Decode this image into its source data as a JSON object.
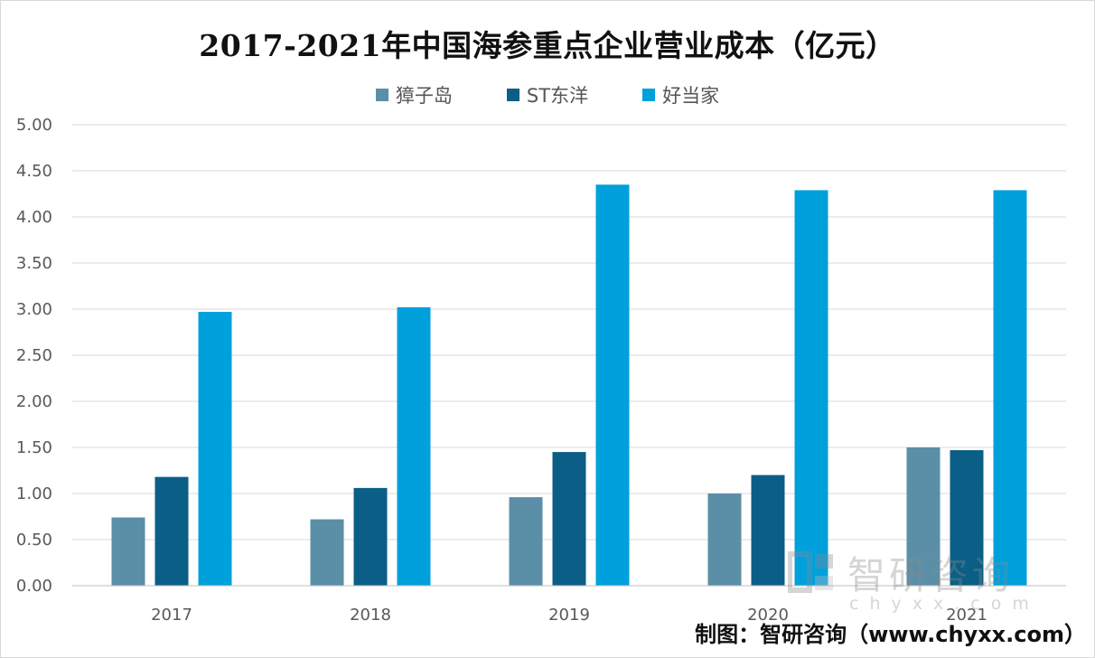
{
  "title": "2017-2021年中国海参重点企业营业成本（亿元）",
  "credit": "制图：智研咨询（www.chyxx.com）",
  "watermark": {
    "cn": "智研咨询",
    "en": "chyxx.com"
  },
  "chart_data": {
    "type": "bar",
    "title": "2017-2021年中国海参重点企业营业成本（亿元）",
    "categories": [
      "2017",
      "2018",
      "2019",
      "2020",
      "2021"
    ],
    "series": [
      {
        "name": "獐子岛",
        "color": "#5b8fa8",
        "values": [
          0.74,
          0.72,
          0.96,
          1.0,
          1.5
        ]
      },
      {
        "name": "ST东洋",
        "color": "#0b5e86",
        "values": [
          1.18,
          1.06,
          1.45,
          1.2,
          1.47
        ]
      },
      {
        "name": "好当家",
        "color": "#00a0dc",
        "values": [
          2.97,
          3.02,
          4.35,
          4.29,
          4.29
        ]
      }
    ],
    "ylim": [
      0,
      5
    ],
    "yticks": [
      "0.00",
      "0.50",
      "1.00",
      "1.50",
      "2.00",
      "2.50",
      "3.00",
      "3.50",
      "4.00",
      "4.50",
      "5.00"
    ],
    "grid": true,
    "legend_position": "top-center"
  }
}
